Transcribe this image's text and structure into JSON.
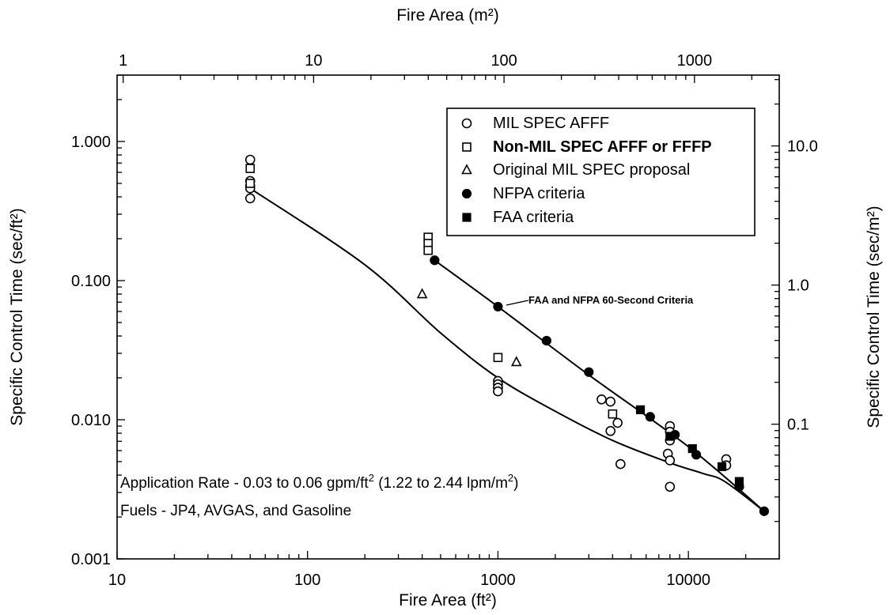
{
  "chart_data": {
    "type": "scatter",
    "scale": "log-log",
    "xlabel": "Fire Area (ft²)",
    "x2label": "Fire Area (m²)",
    "ylabel": "Specific Control Time (sec/ft²)",
    "y2label": "Specific Control Time (sec/m²)",
    "xlim": [
      10,
      30000
    ],
    "ylim": [
      0.001,
      3
    ],
    "x_ticks": [
      "10",
      "100",
      "1000",
      "10000"
    ],
    "y_ticks": [
      "0.001",
      "0.010",
      "0.100",
      "1.000"
    ],
    "x2_ticks": [
      "1",
      "10",
      "100",
      "1000"
    ],
    "y2_ticks": [
      "0.1",
      "1.0",
      "10.0"
    ],
    "legend_position": "top-right",
    "legend": [
      {
        "marker": "circle-open",
        "label": "MIL SPEC AFFF"
      },
      {
        "marker": "square-open",
        "label": "Non-MIL SPEC AFFF or FFFP"
      },
      {
        "marker": "triangle-open",
        "label": "Original MIL SPEC proposal"
      },
      {
        "marker": "circle-filled",
        "label": "NFPA criteria"
      },
      {
        "marker": "square-filled",
        "label": "FAA criteria"
      }
    ],
    "series": [
      {
        "name": "MIL SPEC AFFF",
        "marker": "circle-open",
        "points": [
          [
            50,
            0.74
          ],
          [
            50,
            0.52
          ],
          [
            50,
            0.48
          ],
          [
            50,
            0.46
          ],
          [
            50,
            0.39
          ],
          [
            1000,
            0.019
          ],
          [
            1000,
            0.018
          ],
          [
            1000,
            0.017
          ],
          [
            1000,
            0.016
          ],
          [
            3500,
            0.014
          ],
          [
            3900,
            0.0135
          ],
          [
            4250,
            0.0095
          ],
          [
            3900,
            0.0083
          ],
          [
            4400,
            0.0048
          ],
          [
            8000,
            0.009
          ],
          [
            8000,
            0.0082
          ],
          [
            8000,
            0.0071
          ],
          [
            7800,
            0.0057
          ],
          [
            8000,
            0.0051
          ],
          [
            8000,
            0.0033
          ],
          [
            15800,
            0.0052
          ],
          [
            15800,
            0.0047
          ]
        ]
      },
      {
        "name": "Non-MIL SPEC AFFF or FFFP",
        "marker": "square-open",
        "points": [
          [
            50,
            0.64
          ],
          [
            50,
            0.5
          ],
          [
            430,
            0.205
          ],
          [
            430,
            0.185
          ],
          [
            430,
            0.165
          ],
          [
            1000,
            0.028
          ],
          [
            4000,
            0.011
          ]
        ]
      },
      {
        "name": "Original MIL SPEC proposal",
        "marker": "triangle-open",
        "points": [
          [
            400,
            0.08
          ],
          [
            1250,
            0.026
          ]
        ]
      },
      {
        "name": "NFPA criteria",
        "marker": "circle-filled",
        "points": [
          [
            465,
            0.14
          ],
          [
            1000,
            0.065
          ],
          [
            1800,
            0.037
          ],
          [
            3000,
            0.022
          ],
          [
            6300,
            0.0105
          ],
          [
            8500,
            0.0078
          ],
          [
            11000,
            0.0056
          ],
          [
            18500,
            0.0033
          ],
          [
            25000,
            0.0022
          ]
        ]
      },
      {
        "name": "FAA criteria",
        "marker": "square-filled",
        "points": [
          [
            5600,
            0.0118
          ],
          [
            8000,
            0.0076
          ],
          [
            10500,
            0.0062
          ],
          [
            15000,
            0.0046
          ],
          [
            18500,
            0.0036
          ]
        ]
      }
    ],
    "curves": [
      {
        "points": [
          [
            50,
            0.46
          ],
          [
            200,
            0.13
          ],
          [
            500,
            0.042
          ],
          [
            1000,
            0.02
          ],
          [
            2000,
            0.0115
          ],
          [
            4000,
            0.0071
          ],
          [
            8000,
            0.0049
          ],
          [
            12000,
            0.0041
          ],
          [
            15500,
            0.0036
          ],
          [
            25000,
            0.0022
          ]
        ]
      },
      {
        "points": [
          [
            465,
            0.14
          ],
          [
            1000,
            0.065
          ],
          [
            3000,
            0.021
          ],
          [
            10000,
            0.0064
          ],
          [
            25000,
            0.0022
          ]
        ]
      }
    ],
    "annotations": {
      "criteria_line": "FAA and NFPA 60-Second Criteria",
      "rate_prefix": "Application Rate - 0.03 to 0.06 gpm/ft",
      "rate_exp1": "2",
      "rate_mid": " (1.22 to 2.44 lpm/m",
      "rate_exp2": "2",
      "rate_suffix": ")",
      "fuels": "Fuels - JP4, AVGAS, and Gasoline"
    }
  }
}
